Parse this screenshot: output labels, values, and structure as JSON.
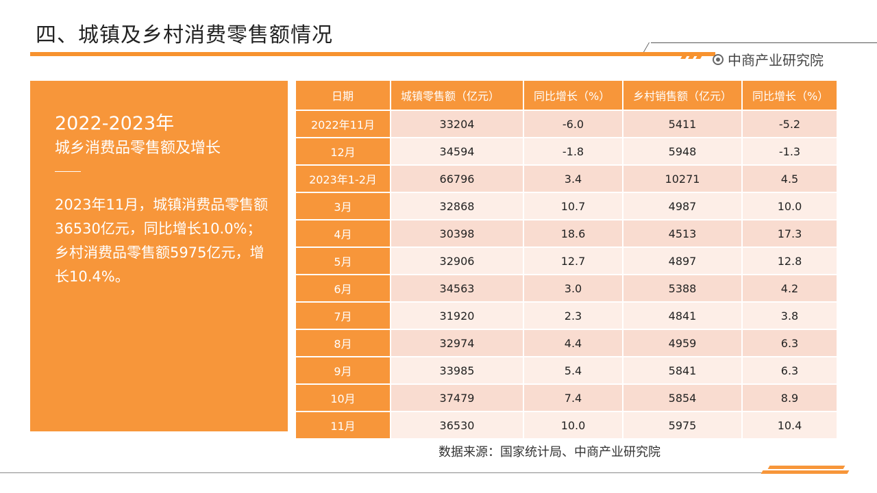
{
  "header": {
    "title": "四、城镇及乡村消费零售额情况",
    "brand": "中商产业研究院",
    "brand_icon": "circle-dot-icon",
    "accent_color": "#f7963a"
  },
  "summary": {
    "year_range": "2022-2023年",
    "subtitle": "城乡消费品零售额及增长",
    "body": "2023年11月，城镇消费品零售额36530亿元，同比增长10.0%；乡村消费品零售额5975亿元，增长10.4%。"
  },
  "table": {
    "headers": [
      "日期",
      "城镇零售额（亿元）",
      "同比增长（%）",
      "乡村销售额（亿元）",
      "同比增长（%）"
    ],
    "rows": [
      [
        "2022年11月",
        "33204",
        "-6.0",
        "5411",
        "-5.2"
      ],
      [
        "12月",
        "34594",
        "-1.8",
        "5948",
        "-1.3"
      ],
      [
        "2023年1-2月",
        "66796",
        "3.4",
        "10271",
        "4.5"
      ],
      [
        "3月",
        "32868",
        "10.7",
        "4987",
        "10.0"
      ],
      [
        "4月",
        "30398",
        "18.6",
        "4513",
        "17.3"
      ],
      [
        "5月",
        "32906",
        "12.7",
        "4897",
        "12.8"
      ],
      [
        "6月",
        "34563",
        "3.0",
        "5388",
        "4.2"
      ],
      [
        "7月",
        "31920",
        "2.3",
        "4841",
        "3.8"
      ],
      [
        "8月",
        "32974",
        "4.4",
        "4959",
        "6.3"
      ],
      [
        "9月",
        "33985",
        "5.4",
        "5841",
        "6.3"
      ],
      [
        "10月",
        "37479",
        "7.4",
        "5854",
        "8.9"
      ],
      [
        "11月",
        "36530",
        "10.0",
        "5975",
        "10.4"
      ]
    ]
  },
  "source": "数据来源：国家统计局、中商产业研究院"
}
